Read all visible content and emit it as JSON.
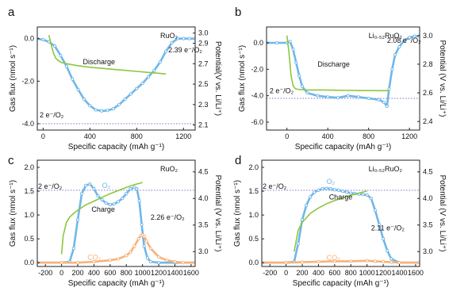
{
  "colors": {
    "gas": "#6fb7e8",
    "potential": "#8ec63f",
    "co2": "#f7b27a",
    "ref": "#7f73c8",
    "axis": "#222222"
  },
  "chart_data": [
    {
      "type": "line",
      "panel": "a",
      "title": "RuO₂",
      "xlabel": "Specific capacity (mAh g⁻¹)",
      "ylabel": "Gas flux (nmol s⁻¹)",
      "y2label": "Potential(V vs. Li/Li⁺)",
      "xlim": [
        -50,
        1300
      ],
      "xticks": [
        0,
        400,
        800,
        1200
      ],
      "ylim": [
        -4.3,
        0.55
      ],
      "yticks": [
        0.0,
        -2.0,
        -4.0
      ],
      "ytick_labels": [
        "0.0",
        "-2.0",
        "-4.0"
      ],
      "y2lim": [
        2.05,
        3.06
      ],
      "y2ticks": [
        2.1,
        2.3,
        2.5,
        2.7,
        2.9,
        3.0
      ],
      "annotations": [
        "Discharge",
        "2.39 e⁻/O₂",
        "2 e⁻/O₂"
      ],
      "reference_line": {
        "axis": "y",
        "value": -4.0,
        "label": "2 e⁻/O₂"
      },
      "series": [
        {
          "key": "gas",
          "axis": "left",
          "marker": "circle",
          "x": [
            -50,
            0,
            50,
            100,
            150,
            200,
            250,
            300,
            350,
            400,
            450,
            500,
            550,
            600,
            650,
            700,
            750,
            800,
            850,
            900,
            950,
            1000,
            1050,
            1100,
            1150,
            1200,
            1250,
            1300
          ],
          "y": [
            0.0,
            -0.05,
            -0.15,
            -0.35,
            -0.8,
            -1.3,
            -1.9,
            -2.4,
            -2.85,
            -3.15,
            -3.35,
            -3.4,
            -3.38,
            -3.3,
            -3.1,
            -2.85,
            -2.6,
            -2.35,
            -2.1,
            -1.8,
            -1.5,
            -1.1,
            -0.6,
            -0.2,
            0.0,
            0.0,
            0.0,
            0.0
          ]
        },
        {
          "key": "potential",
          "axis": "right",
          "marker": "none",
          "x": [
            50,
            70,
            90,
            110,
            130,
            160,
            200,
            300,
            400,
            500,
            600,
            700,
            800,
            900,
            1000,
            1050
          ],
          "y": [
            2.98,
            2.88,
            2.8,
            2.75,
            2.73,
            2.71,
            2.7,
            2.68,
            2.665,
            2.655,
            2.645,
            2.635,
            2.625,
            2.615,
            2.605,
            2.6
          ]
        }
      ]
    },
    {
      "type": "line",
      "panel": "b",
      "title": "Li₀.₅₂RuO₂",
      "xlabel": "Specific capacity (mAh g⁻¹)",
      "ylabel": "Gas flux (nmol s⁻¹)",
      "y2label": "Potential (V vs. Li/Li⁺)",
      "xlim": [
        -200,
        1300
      ],
      "xticks": [
        0,
        400,
        800,
        1200
      ],
      "ylim": [
        -6.6,
        1.2
      ],
      "yticks": [
        0.0,
        -2.0,
        -4.0,
        -6.0
      ],
      "ytick_labels": [
        "0.0",
        "-2.0",
        "-4.0",
        "-6.0"
      ],
      "y2lim": [
        2.34,
        3.06
      ],
      "y2ticks": [
        2.4,
        2.6,
        2.8,
        3.0
      ],
      "annotations": [
        "Discharge",
        "2.08 e⁻/O₂",
        "2 e⁻/O₂"
      ],
      "reference_line": {
        "axis": "y",
        "value": -4.2,
        "label": "2 e⁻/O₂"
      },
      "series": [
        {
          "key": "gas",
          "axis": "left",
          "marker": "circle",
          "x": [
            -200,
            -100,
            0,
            30,
            60,
            90,
            120,
            150,
            200,
            300,
            400,
            500,
            600,
            700,
            800,
            900,
            950,
            980,
            1000,
            1030,
            1060,
            1100,
            1150,
            1200,
            1250,
            1300
          ],
          "y": [
            0.0,
            0.0,
            0.0,
            0.1,
            -0.5,
            -1.5,
            -2.5,
            -3.3,
            -3.8,
            -4.0,
            -4.1,
            -4.15,
            -4.0,
            -4.1,
            -4.2,
            -4.3,
            -4.5,
            -4.8,
            -3.5,
            -2.0,
            -0.9,
            -0.3,
            0.2,
            0.4,
            0.5,
            0.5
          ]
        },
        {
          "key": "potential",
          "axis": "right",
          "marker": "none",
          "x": [
            0,
            20,
            40,
            60,
            80,
            100,
            150,
            200,
            300,
            400,
            500,
            600,
            700,
            800,
            900,
            1000
          ],
          "y": [
            3.0,
            2.88,
            2.72,
            2.65,
            2.63,
            2.625,
            2.622,
            2.62,
            2.62,
            2.619,
            2.618,
            2.617,
            2.616,
            2.616,
            2.615,
            2.615
          ]
        }
      ]
    },
    {
      "type": "line",
      "panel": "c",
      "title": "RuO₂",
      "xlabel": "Specific capacity (mAh g⁻¹)",
      "ylabel": "Gas flux (nmol s⁻¹)",
      "y2label": "Potential (V vs. Li/Li⁺)",
      "xlim": [
        -300,
        1650
      ],
      "xticks": [
        -200,
        0,
        200,
        400,
        600,
        800,
        1000,
        1200,
        1400,
        1600
      ],
      "ylim": [
        -0.08,
        2.15
      ],
      "yticks": [
        0.0,
        0.5,
        1.0,
        1.5,
        2.0
      ],
      "ytick_labels": [
        "0.0",
        "0.5",
        "1.0",
        "1.5",
        "2.0"
      ],
      "y2lim": [
        2.72,
        4.72
      ],
      "y2ticks": [
        3.0,
        3.5,
        4.0,
        4.5
      ],
      "annotations": [
        "O₂",
        "Charge",
        "CO₂",
        "2.26 e⁻/O₂",
        "2 e⁻/O₂"
      ],
      "reference_line": {
        "axis": "y",
        "value": 1.52,
        "label": "2 e⁻/O₂"
      },
      "series": [
        {
          "key": "o2",
          "axis": "left",
          "marker": "circle",
          "x": [
            -300,
            0,
            100,
            150,
            200,
            250,
            300,
            350,
            400,
            450,
            500,
            550,
            600,
            650,
            700,
            750,
            800,
            850,
            900,
            930,
            960,
            990,
            1020,
            1060,
            1100,
            1200,
            1400,
            1650
          ],
          "y": [
            0.0,
            0.0,
            0.02,
            0.3,
            0.9,
            1.45,
            1.62,
            1.65,
            1.55,
            1.4,
            1.32,
            1.25,
            1.22,
            1.23,
            1.28,
            1.35,
            1.45,
            1.55,
            1.58,
            1.55,
            1.3,
            0.8,
            0.35,
            0.1,
            0.02,
            0.0,
            0.0,
            0.0
          ]
        },
        {
          "key": "co2",
          "axis": "left",
          "marker": "circle",
          "x": [
            -300,
            0,
            200,
            400,
            600,
            700,
            800,
            850,
            900,
            950,
            980,
            1000,
            1020,
            1050,
            1100,
            1200,
            1300,
            1400,
            1500,
            1650
          ],
          "y": [
            0.0,
            0.0,
            0.0,
            0.02,
            0.05,
            0.08,
            0.15,
            0.22,
            0.35,
            0.5,
            0.57,
            0.58,
            0.55,
            0.45,
            0.3,
            0.12,
            0.05,
            0.02,
            0.0,
            0.0
          ]
        },
        {
          "key": "potential",
          "axis": "right",
          "marker": "none",
          "x": [
            0,
            20,
            60,
            100,
            150,
            200,
            300,
            400,
            500,
            600,
            700,
            800,
            900,
            1000
          ],
          "y": [
            2.95,
            3.3,
            3.55,
            3.65,
            3.72,
            3.78,
            3.88,
            3.95,
            4.02,
            4.09,
            4.15,
            4.21,
            4.26,
            4.3
          ]
        }
      ]
    },
    {
      "type": "line",
      "panel": "d",
      "title": "Li₀.₅₂RuO₂",
      "xlabel": "Specific capacity (mAh g⁻¹)",
      "ylabel": "Gas flux (nmol s⁻¹)",
      "y2label": "Potential (V vs. Li/Li⁺)",
      "xlim": [
        -300,
        1650
      ],
      "xticks": [
        -200,
        0,
        200,
        400,
        600,
        800,
        1000,
        1200,
        1400,
        1600
      ],
      "ylim": [
        -0.08,
        2.15
      ],
      "yticks": [
        0.0,
        0.5,
        1.0,
        1.5,
        2.0
      ],
      "ytick_labels": [
        "0.0",
        "0.5",
        "1.0",
        "1.5",
        "2.0"
      ],
      "y2lim": [
        2.72,
        4.72
      ],
      "y2ticks": [
        3.0,
        3.5,
        4.0,
        4.5
      ],
      "annotations": [
        "O₂",
        "Charge",
        "CO₂",
        "2.11 e⁻/O₂",
        "2 e⁻/O₂"
      ],
      "reference_line": {
        "axis": "y",
        "value": 1.52,
        "label": "2 e⁻/O₂"
      },
      "series": [
        {
          "key": "o2",
          "axis": "left",
          "marker": "circle",
          "x": [
            -300,
            0,
            100,
            150,
            200,
            250,
            300,
            350,
            400,
            450,
            500,
            550,
            600,
            650,
            700,
            750,
            800,
            850,
            900,
            950,
            1000,
            1050,
            1100,
            1150,
            1200,
            1250,
            1300,
            1400,
            1650
          ],
          "y": [
            0.0,
            0.0,
            0.02,
            0.4,
            0.9,
            1.2,
            1.38,
            1.48,
            1.52,
            1.55,
            1.56,
            1.55,
            1.53,
            1.52,
            1.5,
            1.48,
            1.46,
            1.45,
            1.44,
            1.43,
            1.42,
            1.35,
            1.1,
            0.8,
            0.5,
            0.25,
            0.08,
            0.0,
            0.0
          ]
        },
        {
          "key": "co2",
          "axis": "left",
          "marker": "circle",
          "x": [
            -300,
            0,
            200,
            400,
            600,
            800,
            1000,
            1100,
            1200,
            1300,
            1400,
            1650
          ],
          "y": [
            0.0,
            0.0,
            0.01,
            0.02,
            0.03,
            0.03,
            0.04,
            0.03,
            0.02,
            0.01,
            0.0,
            0.0
          ]
        },
        {
          "key": "potential",
          "axis": "right",
          "marker": "none",
          "x": [
            100,
            150,
            200,
            300,
            400,
            500,
            600,
            700,
            800,
            900,
            1000
          ],
          "y": [
            3.0,
            3.4,
            3.55,
            3.72,
            3.82,
            3.9,
            3.96,
            4.01,
            4.06,
            4.1,
            4.14
          ]
        }
      ]
    }
  ]
}
